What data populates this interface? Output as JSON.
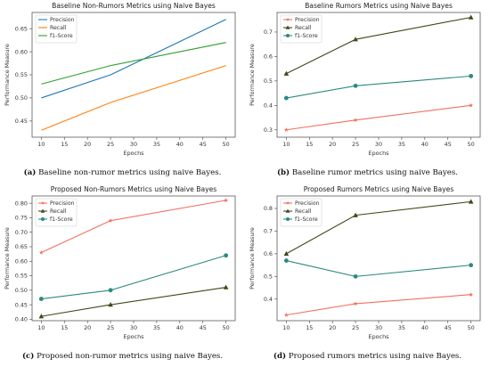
{
  "captions": [
    {
      "tag": "(a)",
      "text": "Baseline non-rumor metrics using naive Bayes."
    },
    {
      "tag": "(b)",
      "text": "Baseline rumor metrics using naive Bayes."
    },
    {
      "tag": "(c)",
      "text": "Proposed non-rumor metrics using naive Bayes."
    },
    {
      "tag": "(d)",
      "text": "Proposed rumors metrics using naive Bayes."
    }
  ],
  "chart_data": [
    {
      "type": "line",
      "title": "Baseline Non-Rumors Metrics using Naive Bayes",
      "xlabel": "Epochs",
      "ylabel": "Performance Measure",
      "x": [
        10,
        25,
        50
      ],
      "xlim": [
        8,
        52
      ],
      "ylim": [
        0.415,
        0.685
      ],
      "yticks": [
        0.45,
        0.5,
        0.55,
        0.6,
        0.65
      ],
      "ytick_labels": [
        "0.45",
        "0.50",
        "0.55",
        "0.60",
        "0.65"
      ],
      "xticks": [
        10,
        15,
        20,
        25,
        30,
        35,
        40,
        45,
        50
      ],
      "legend_position": "top-left",
      "series": [
        {
          "name": "Precision",
          "color": "#1f77b4",
          "marker": "none",
          "values": [
            0.5,
            0.55,
            0.67
          ]
        },
        {
          "name": "Recall",
          "color": "#ff7f0e",
          "marker": "none",
          "values": [
            0.43,
            0.49,
            0.57
          ]
        },
        {
          "name": "f1-Score",
          "color": "#2ca02c",
          "marker": "none",
          "values": [
            0.53,
            0.57,
            0.62
          ]
        }
      ]
    },
    {
      "type": "line",
      "title": "Baseline Rumors Metrics using Naive Bayes",
      "xlabel": "Epochs",
      "ylabel": "Performance Measure",
      "x": [
        10,
        25,
        50
      ],
      "xlim": [
        8,
        52
      ],
      "ylim": [
        0.27,
        0.78
      ],
      "yticks": [
        0.3,
        0.4,
        0.5,
        0.6,
        0.7
      ],
      "ytick_labels": [
        "0.3",
        "0.4",
        "0.5",
        "0.6",
        "0.7"
      ],
      "xticks": [
        10,
        15,
        20,
        25,
        30,
        35,
        40,
        45,
        50
      ],
      "legend_position": "top-left",
      "series": [
        {
          "name": "Precision",
          "color": "#f07060",
          "marker": "star",
          "values": [
            0.3,
            0.34,
            0.4
          ]
        },
        {
          "name": "Recall",
          "color": "#3d4a1a",
          "marker": "triangle",
          "values": [
            0.53,
            0.67,
            0.76
          ]
        },
        {
          "name": "f1-Score",
          "color": "#2b8a80",
          "marker": "circle",
          "values": [
            0.43,
            0.48,
            0.52
          ]
        }
      ]
    },
    {
      "type": "line",
      "title": "Proposed Non-Rumors Metrics using Naive Bayes",
      "xlabel": "Epochs",
      "ylabel": "Performance Measure",
      "x": [
        10,
        25,
        50
      ],
      "xlim": [
        8,
        52
      ],
      "ylim": [
        0.395,
        0.825
      ],
      "yticks": [
        0.4,
        0.45,
        0.5,
        0.55,
        0.6,
        0.65,
        0.7,
        0.75,
        0.8
      ],
      "ytick_labels": [
        "0.40",
        "0.45",
        "0.50",
        "0.55",
        "0.60",
        "0.65",
        "0.70",
        "0.75",
        "0.80"
      ],
      "xticks": [
        10,
        15,
        20,
        25,
        30,
        35,
        40,
        45,
        50
      ],
      "legend_position": "top-left",
      "series": [
        {
          "name": "Precision",
          "color": "#f07060",
          "marker": "star",
          "values": [
            0.63,
            0.74,
            0.81
          ]
        },
        {
          "name": "Recall",
          "color": "#3d4a1a",
          "marker": "triangle",
          "values": [
            0.41,
            0.45,
            0.51
          ]
        },
        {
          "name": "f1-Score",
          "color": "#2b8a80",
          "marker": "circle",
          "values": [
            0.47,
            0.5,
            0.62
          ]
        }
      ]
    },
    {
      "type": "line",
      "title": "Proposed Rumors Metrics using Naive Bayes",
      "xlabel": "Epochs",
      "ylabel": "Performance Measure",
      "x": [
        10,
        25,
        50
      ],
      "xlim": [
        8,
        52
      ],
      "ylim": [
        0.305,
        0.855
      ],
      "yticks": [
        0.4,
        0.5,
        0.6,
        0.7,
        0.8
      ],
      "ytick_labels": [
        "0.4",
        "0.5",
        "0.6",
        "0.7",
        "0.8"
      ],
      "xticks": [
        10,
        15,
        20,
        25,
        30,
        35,
        40,
        45,
        50
      ],
      "legend_position": "top-left",
      "series": [
        {
          "name": "Precision",
          "color": "#f07060",
          "marker": "star",
          "values": [
            0.33,
            0.38,
            0.42
          ]
        },
        {
          "name": "Recall",
          "color": "#3d4a1a",
          "marker": "triangle",
          "values": [
            0.6,
            0.77,
            0.83
          ]
        },
        {
          "name": "f1-Score",
          "color": "#2b8a80",
          "marker": "circle",
          "values": [
            0.57,
            0.5,
            0.55
          ]
        }
      ]
    }
  ]
}
